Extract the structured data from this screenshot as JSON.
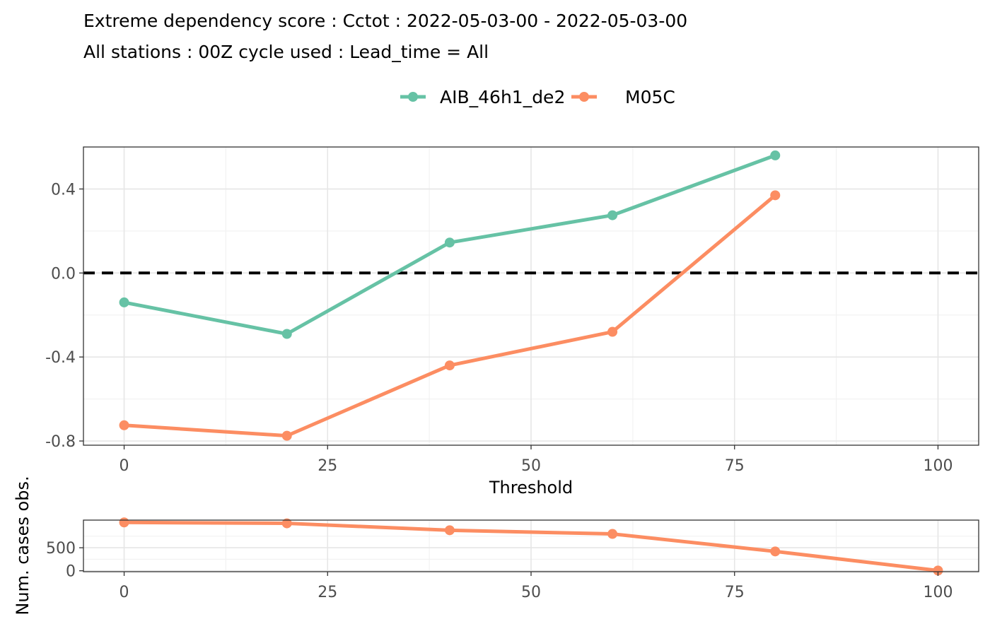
{
  "title": {
    "line1": "Extreme dependency score : Cctot : 2022-05-03-00 - 2022-05-03-00",
    "line2": "All stations : 00Z cycle used : Lead_time = All"
  },
  "chart_data": [
    {
      "type": "line",
      "xlabel": "Threshold",
      "ylabel": "",
      "xlim": [
        -5,
        105
      ],
      "ylim": [
        -0.82,
        0.6
      ],
      "xticks": [
        0,
        25,
        50,
        75,
        100
      ],
      "yticks": [
        0.4,
        0.0,
        -0.4,
        -0.8
      ],
      "ytick_labels": [
        "0.4",
        "0.0",
        "-0.4",
        "-0.8"
      ],
      "grid": true,
      "legend_position": "top",
      "reference_line": {
        "y": 0,
        "style": "dashed",
        "color": "#000000"
      },
      "series": [
        {
          "name": "AIB_46h1_de2",
          "color": "#66C2A5",
          "x": [
            0,
            20,
            40,
            60,
            80
          ],
          "y": [
            -0.14,
            -0.29,
            0.145,
            0.275,
            0.56
          ]
        },
        {
          "name": "M05C",
          "color": "#FC8D62",
          "x": [
            0,
            20,
            40,
            60,
            80
          ],
          "y": [
            -0.725,
            -0.775,
            -0.44,
            -0.28,
            0.37
          ]
        }
      ]
    },
    {
      "type": "line",
      "xlabel": "",
      "ylabel": "Num. cases obs.",
      "xlim": [
        -5,
        105
      ],
      "ylim": [
        -20,
        1100
      ],
      "xticks": [
        0,
        25,
        50,
        75,
        100
      ],
      "yticks": [
        0,
        500
      ],
      "ytick_labels": [
        "0",
        "500"
      ],
      "grid": true,
      "series": [
        {
          "color": "#FC8D62",
          "x": [
            0,
            20,
            40,
            60,
            80,
            100
          ],
          "y": [
            1050,
            1030,
            880,
            800,
            420,
            5
          ]
        }
      ]
    }
  ]
}
